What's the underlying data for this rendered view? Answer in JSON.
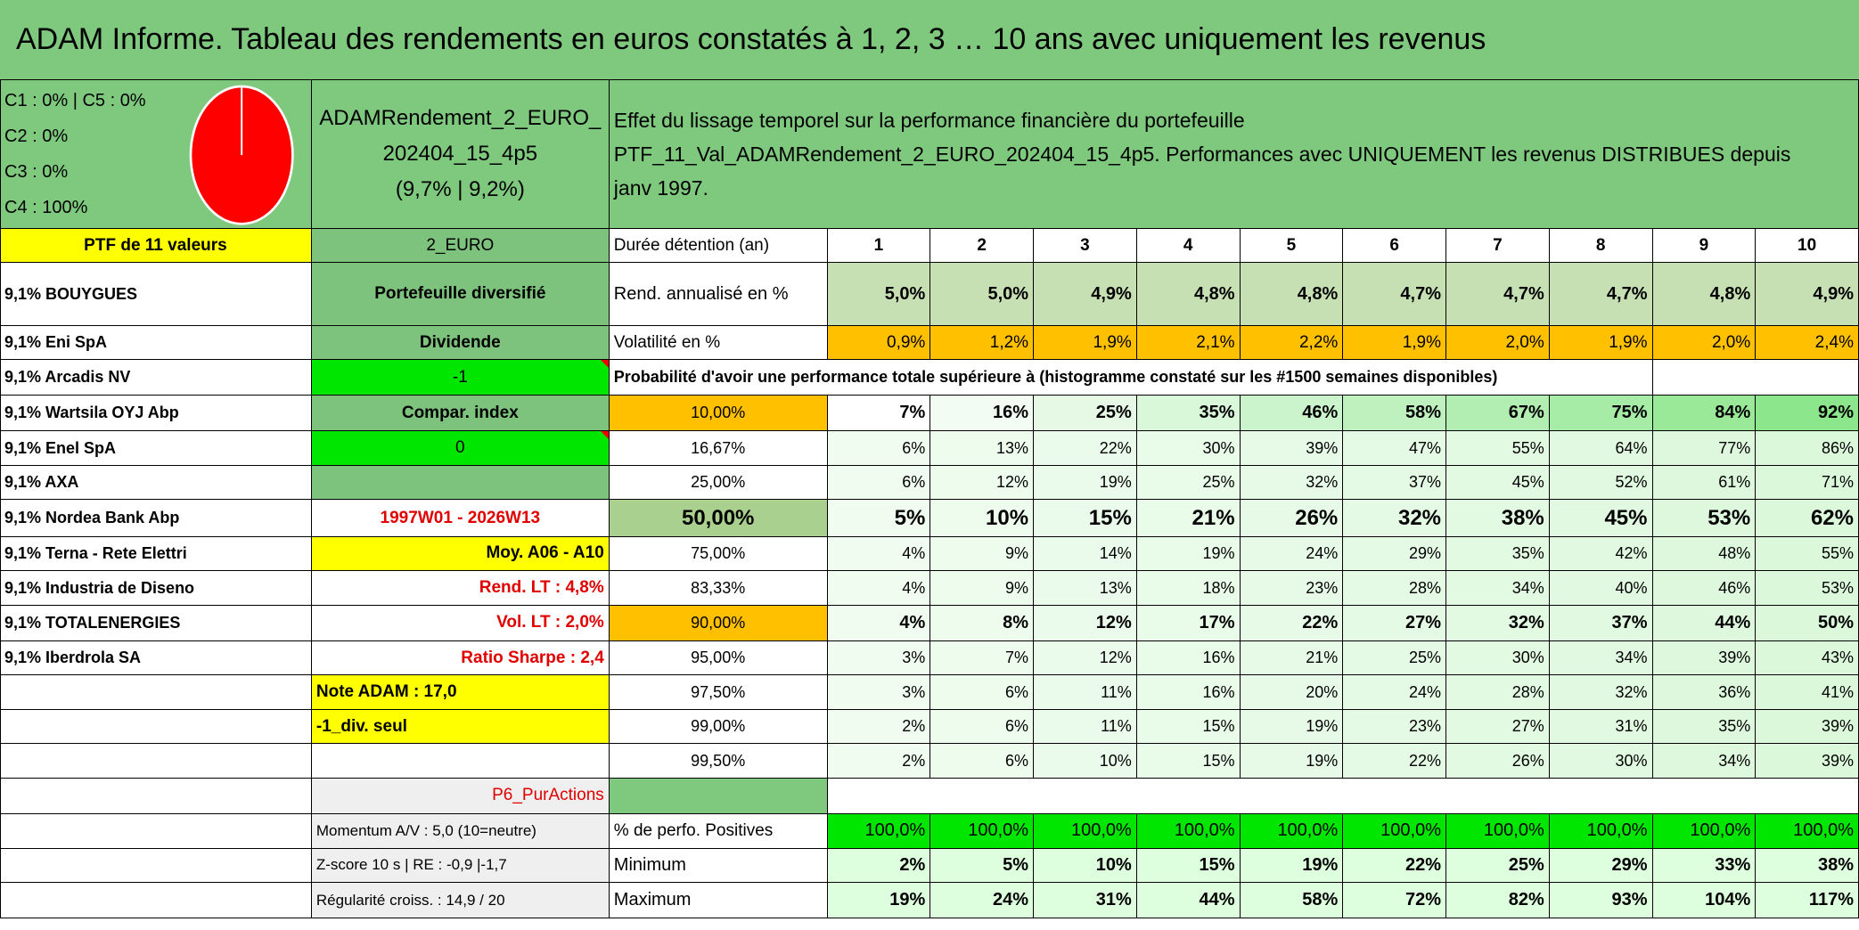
{
  "header": {
    "title": "ADAM Informe. Tableau des rendements en euros constatés à 1, 2, 3 … 10 ans avec uniquement les revenus"
  },
  "allocation": {
    "lines": [
      "C1 : 0% | C5 : 0%",
      "C2 : 0%",
      "C3 : 0%",
      "C4 : 100%"
    ]
  },
  "portfolio": {
    "lines": [
      "ADAMRendement_2_EURO_",
      "202404_15_4p5",
      "(9,7% | 9,2%)"
    ]
  },
  "description": {
    "lines": [
      "Effet du lissage temporel sur la performance financière du portefeuille",
      "PTF_11_Val_ADAMRendement_2_EURO_202404_15_4p5. Performances avec UNIQUEMENT les revenus DISTRIBUES depuis",
      "janv 1997."
    ]
  },
  "holdings": {
    "heading": "PTF de 11 valeurs",
    "items": [
      "9,1% BOUYGUES",
      "9,1% Eni SpA",
      "9,1% Arcadis NV",
      "9,1% Wartsila OYJ Abp",
      "9,1% Enel SpA",
      "9,1% AXA",
      "9,1% Nordea Bank Abp",
      "9,1% Terna - Rete Elettri",
      "9,1% Industria de Diseno",
      "9,1% TOTALENERGIES",
      "9,1% Iberdrola SA"
    ]
  },
  "info": {
    "currency": "2_EURO",
    "type": "Portefeuille diversifié",
    "dividend_label": "Dividende",
    "dividend_value": "-1",
    "index_label": "Compar. index",
    "index_value": "0",
    "period": "1997W01 - 2026W13",
    "average": "Moy. A06 - A10",
    "long_term_return": "Rend. LT : 4,8%",
    "long_term_vol": "Vol. LT : 2,0%",
    "sharpe": "Ratio Sharpe : 2,4",
    "note": "Note ADAM : 17,0",
    "div_only": "-1_div. seul",
    "category": "P6_PurActions",
    "momentum": "Momentum A/V : 5,0 (10=neutre)",
    "zscore": "Z-score 10 s | RE : -0,9 |-1,7",
    "regularity": "Régularité croiss. : 14,9 / 20"
  },
  "performance": {
    "duration_label": "Durée détention (an)",
    "horizons": [
      1,
      2,
      3,
      4,
      5,
      6,
      7,
      8,
      9,
      10
    ],
    "return": {
      "label": "Rend. annualisé en %",
      "values": [
        "5,0%",
        "5,0%",
        "4,9%",
        "4,8%",
        "4,8%",
        "4,7%",
        "4,7%",
        "4,7%",
        "4,8%",
        "4,9%"
      ]
    },
    "volatility": {
      "label": "Volatilité en %",
      "values": [
        "0,9%",
        "1,2%",
        "1,9%",
        "2,1%",
        "2,2%",
        "1,9%",
        "2,0%",
        "1,9%",
        "2,0%",
        "2,4%"
      ]
    },
    "probability_title": "Probabilité d'avoir une performance totale supérieure à (histogramme constaté sur les #1500 semaines disponibles)",
    "probability_rows": [
      {
        "threshold": "10,00%",
        "values": [
          "7%",
          "16%",
          "25%",
          "35%",
          "46%",
          "58%",
          "67%",
          "75%",
          "84%",
          "92%"
        ]
      },
      {
        "threshold": "16,67%",
        "values": [
          "6%",
          "13%",
          "22%",
          "30%",
          "39%",
          "47%",
          "55%",
          "64%",
          "77%",
          "86%"
        ]
      },
      {
        "threshold": "25,00%",
        "values": [
          "6%",
          "12%",
          "19%",
          "25%",
          "32%",
          "37%",
          "45%",
          "52%",
          "61%",
          "71%"
        ]
      },
      {
        "threshold": "50,00%",
        "values": [
          "5%",
          "10%",
          "15%",
          "21%",
          "26%",
          "32%",
          "38%",
          "45%",
          "53%",
          "62%"
        ]
      },
      {
        "threshold": "75,00%",
        "values": [
          "4%",
          "9%",
          "14%",
          "19%",
          "24%",
          "29%",
          "35%",
          "42%",
          "48%",
          "55%"
        ]
      },
      {
        "threshold": "83,33%",
        "values": [
          "4%",
          "9%",
          "13%",
          "18%",
          "23%",
          "28%",
          "34%",
          "40%",
          "46%",
          "53%"
        ]
      },
      {
        "threshold": "90,00%",
        "values": [
          "4%",
          "8%",
          "12%",
          "17%",
          "22%",
          "27%",
          "32%",
          "37%",
          "44%",
          "50%"
        ]
      },
      {
        "threshold": "95,00%",
        "values": [
          "3%",
          "7%",
          "12%",
          "16%",
          "21%",
          "25%",
          "30%",
          "34%",
          "39%",
          "43%"
        ]
      },
      {
        "threshold": "97,50%",
        "values": [
          "3%",
          "6%",
          "11%",
          "16%",
          "20%",
          "24%",
          "28%",
          "32%",
          "36%",
          "41%"
        ]
      },
      {
        "threshold": "99,00%",
        "values": [
          "2%",
          "6%",
          "11%",
          "15%",
          "19%",
          "23%",
          "27%",
          "31%",
          "35%",
          "39%"
        ]
      },
      {
        "threshold": "99,50%",
        "values": [
          "2%",
          "6%",
          "10%",
          "15%",
          "19%",
          "22%",
          "26%",
          "30%",
          "34%",
          "39%"
        ]
      }
    ],
    "positive": {
      "label": "% de perfo. Positives",
      "values": [
        "100,0%",
        "100,0%",
        "100,0%",
        "100,0%",
        "100,0%",
        "100,0%",
        "100,0%",
        "100,0%",
        "100,0%",
        "100,0%"
      ]
    },
    "minimum": {
      "label": "Minimum",
      "values": [
        "2%",
        "5%",
        "10%",
        "15%",
        "19%",
        "22%",
        "25%",
        "29%",
        "33%",
        "38%"
      ]
    },
    "maximum": {
      "label": "Maximum",
      "values": [
        "19%",
        "24%",
        "31%",
        "44%",
        "58%",
        "72%",
        "82%",
        "93%",
        "104%",
        "117%"
      ]
    }
  }
}
